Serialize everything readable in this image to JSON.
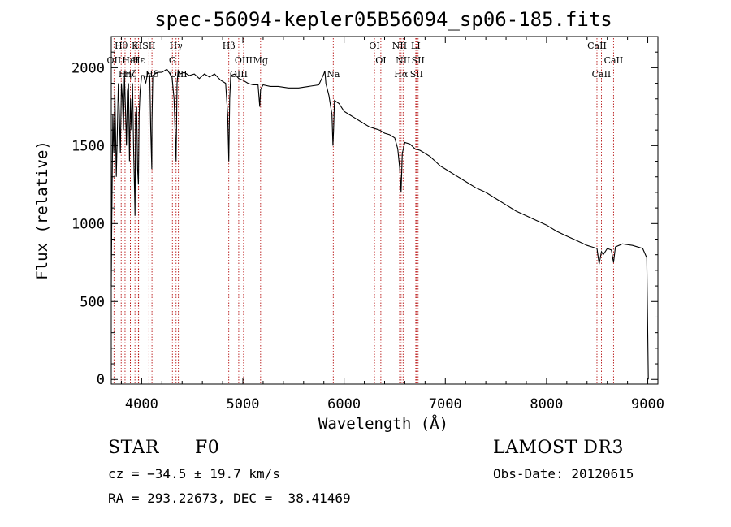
{
  "chart_data": {
    "type": "line",
    "title": "spec-56094-kepler05B56094_sp06-185.fits",
    "xlabel": "Wavelength (Å)",
    "ylabel": "Flux (relative)",
    "xlim": [
      3700,
      9100
    ],
    "ylim": [
      -30,
      2200
    ],
    "xticks": [
      4000,
      5000,
      6000,
      7000,
      8000,
      9000
    ],
    "yticks": [
      0,
      500,
      1000,
      1500,
      2000
    ],
    "series": [
      {
        "name": "spectrum",
        "x": [
          3700,
          3705,
          3715,
          3725,
          3735,
          3750,
          3760,
          3770,
          3780,
          3790,
          3800,
          3810,
          3820,
          3830,
          3840,
          3850,
          3860,
          3870,
          3880,
          3890,
          3900,
          3910,
          3920,
          3930,
          3934,
          3940,
          3950,
          3960,
          3968,
          3975,
          3985,
          4000,
          4020,
          4040,
          4060,
          4080,
          4090,
          4100,
          4102,
          4110,
          4130,
          4160,
          4200,
          4250,
          4300,
          4320,
          4340,
          4350,
          4360,
          4380,
          4420,
          4470,
          4520,
          4570,
          4620,
          4670,
          4720,
          4780,
          4830,
          4850,
          4861,
          4870,
          4880,
          4920,
          4960,
          5000,
          5050,
          5100,
          5150,
          5167,
          5175,
          5200,
          5270,
          5350,
          5450,
          5550,
          5650,
          5750,
          5800,
          5810,
          5820,
          5850,
          5880,
          5890,
          5896,
          5905,
          5950,
          6000,
          6050,
          6100,
          6150,
          6200,
          6250,
          6300,
          6350,
          6400,
          6450,
          6500,
          6530,
          6550,
          6563,
          6575,
          6600,
          6650,
          6700,
          6750,
          6800,
          6850,
          6900,
          6950,
          7000,
          7100,
          7200,
          7300,
          7400,
          7500,
          7600,
          7700,
          7800,
          7900,
          8000,
          8100,
          8200,
          8300,
          8400,
          8450,
          8498,
          8520,
          8542,
          8560,
          8600,
          8640,
          8662,
          8680,
          8750,
          8850,
          8950,
          8990,
          9000,
          9005
        ],
        "values": [
          600,
          1000,
          1700,
          1450,
          1850,
          1300,
          1600,
          1900,
          1700,
          1450,
          1900,
          1800,
          1600,
          1950,
          1750,
          1500,
          1850,
          1900,
          1400,
          1800,
          1600,
          1900,
          1500,
          1200,
          1050,
          1700,
          1750,
          1350,
          1250,
          1700,
          1850,
          1950,
          1950,
          1900,
          1970,
          1950,
          1600,
          1350,
          1650,
          1950,
          1960,
          1970,
          1970,
          1990,
          1940,
          1800,
          1400,
          1900,
          1980,
          1960,
          1970,
          1950,
          1960,
          1930,
          1960,
          1940,
          1960,
          1920,
          1900,
          1700,
          1400,
          1800,
          1950,
          1960,
          1930,
          1920,
          1900,
          1890,
          1890,
          1750,
          1860,
          1890,
          1880,
          1880,
          1870,
          1870,
          1880,
          1890,
          1960,
          1980,
          1900,
          1820,
          1700,
          1500,
          1600,
          1790,
          1770,
          1720,
          1700,
          1680,
          1660,
          1640,
          1620,
          1610,
          1600,
          1580,
          1570,
          1550,
          1480,
          1350,
          1200,
          1450,
          1520,
          1510,
          1480,
          1470,
          1450,
          1430,
          1400,
          1370,
          1350,
          1310,
          1270,
          1230,
          1200,
          1160,
          1120,
          1080,
          1050,
          1020,
          990,
          950,
          920,
          890,
          860,
          850,
          840,
          740,
          820,
          800,
          840,
          830,
          750,
          850,
          870,
          860,
          840,
          780,
          300,
          0
        ]
      }
    ],
    "lines": [
      {
        "label": "Hθ",
        "x": 3798
      },
      {
        "label": "OII",
        "x": 3727
      },
      {
        "label": "Hη",
        "x": 3836
      },
      {
        "label": "K",
        "x": 3934
      },
      {
        "label": "HeI",
        "x": 3889
      },
      {
        "label": "Hζ",
        "x": 3889
      },
      {
        "label": "H",
        "x": 3968
      },
      {
        "label": "Hε",
        "x": 3970
      },
      {
        "label": "Hδ",
        "x": 4102
      },
      {
        "label": "SII",
        "x": 4072
      },
      {
        "label": "G",
        "x": 4304
      },
      {
        "label": "OIII",
        "x": 4363
      },
      {
        "label": "Hγ",
        "x": 4340
      },
      {
        "label": "OIII",
        "x": 5007
      },
      {
        "label": "OIII",
        "x": 4959
      },
      {
        "label": "Hβ",
        "x": 4861
      },
      {
        "label": "Mg",
        "x": 5175
      },
      {
        "label": "Na",
        "x": 5893
      },
      {
        "label": "OI",
        "x": 6300
      },
      {
        "label": "OI",
        "x": 6363
      },
      {
        "label": "Hα",
        "x": 6563
      },
      {
        "label": "NII",
        "x": 6548
      },
      {
        "label": "NII",
        "x": 6583
      },
      {
        "label": "SII",
        "x": 6716
      },
      {
        "label": "LI",
        "x": 6708
      },
      {
        "label": "SII",
        "x": 6731
      },
      {
        "label": "CaII",
        "x": 8542
      },
      {
        "label": "CaII",
        "x": 8498
      },
      {
        "label": "CaII",
        "x": 8662
      }
    ]
  },
  "info": {
    "object_class": "STAR",
    "subclass": "F0",
    "survey": "LAMOST DR3",
    "redshift": "cz = −34.5 ± 19.7 km/s",
    "obs_date": "Obs-Date: 20120615",
    "coords": "RA = 293.22673, DEC =  38.41469"
  }
}
